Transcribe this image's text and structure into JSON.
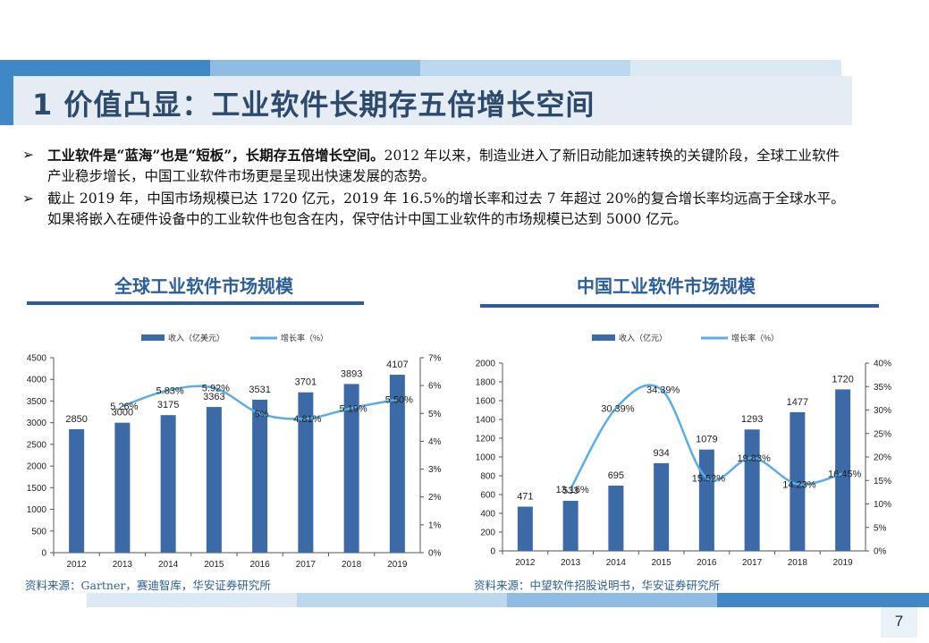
{
  "page": {
    "title": "1 价值凸显：工业软件长期存五倍增长空间",
    "page_number": "7"
  },
  "bullets": [
    {
      "bold": "工业软件是“蓝海”也是“短板”，长期存五倍增长空间。",
      "text": "2012 年以来，制造业进入了新旧动能加速转换的关键阶段，全球工业软件产业稳步增长，中国工业软件市场更是呈现出快速发展的态势。"
    },
    {
      "bold": "",
      "text": "截止 2019 年，中国市场规模已达 1720 亿元，2019 年 16.5%的增长率和过去 7 年超过 20%的复合增长率均远高于全球水平。如果将嵌入在硬件设备中的工业软件也包含在内，保守估计中国工业软件的市场规模已达到 5000 亿元。"
    }
  ],
  "colors": {
    "bar": "#3c6aa6",
    "line": "#5aaee5",
    "title_blue": "#2c5f99",
    "band": [
      "#3f88c5",
      "#8fbce3",
      "#bcd8ef",
      "#dbe9f5"
    ]
  },
  "chart_data": [
    {
      "type": "bar",
      "title": "全球工业软件市场规模",
      "categories": [
        "2012",
        "2013",
        "2014",
        "2015",
        "2016",
        "2017",
        "2018",
        "2019"
      ],
      "series": [
        {
          "name": "收入（亿美元）",
          "values": [
            2850,
            3000,
            3175,
            3363,
            3531,
            3701,
            3893,
            4107
          ],
          "labels": [
            "2850",
            "3000",
            "3175",
            "3363",
            "3531",
            "3701",
            "3893",
            "4107"
          ]
        },
        {
          "name": "增长率（%）",
          "type": "line",
          "axis": "right",
          "values": [
            null,
            5.26,
            5.83,
            5.92,
            5.0,
            4.81,
            5.19,
            5.5
          ],
          "labels": [
            "",
            "5.26%",
            "5.83%",
            "5.92%",
            "5%",
            "4.81%",
            "5.19%",
            "5.50%"
          ]
        }
      ],
      "ylim": [
        0,
        4500
      ],
      "yticks": [
        "0",
        "500",
        "1000",
        "1500",
        "2000",
        "2500",
        "3000",
        "3500",
        "4000",
        "4500"
      ],
      "y2lim": [
        0,
        7
      ],
      "y2ticks": [
        "0%",
        "1%",
        "2%",
        "3%",
        "4%",
        "5%",
        "6%",
        "7%"
      ],
      "legend": "top",
      "grid": false,
      "source": "资料来源：Gartner，赛迪智库，华安证券研究所"
    },
    {
      "type": "bar",
      "title": "中国工业软件市场规模",
      "categories": [
        "2012",
        "2013",
        "2014",
        "2015",
        "2016",
        "2017",
        "2018",
        "2019"
      ],
      "series": [
        {
          "name": "收入（亿元）",
          "values": [
            471,
            533,
            695,
            934,
            1079,
            1293,
            1477,
            1720
          ],
          "labels": [
            "471",
            "533",
            "695",
            "934",
            "1079",
            "1293",
            "1477",
            "1720"
          ]
        },
        {
          "name": "增长率（%）",
          "type": "line",
          "axis": "right",
          "values": [
            null,
            13.16,
            30.39,
            34.39,
            15.52,
            19.83,
            14.23,
            16.45
          ],
          "labels": [
            "",
            "13.16%",
            "30.39%",
            "34.39%",
            "15.52%",
            "19.83%",
            "14.23%",
            "16.45%"
          ]
        }
      ],
      "ylim": [
        0,
        2000
      ],
      "yticks": [
        "0",
        "200",
        "400",
        "600",
        "800",
        "1000",
        "1200",
        "1400",
        "1600",
        "1800",
        "2000"
      ],
      "y2lim": [
        0,
        40
      ],
      "y2ticks": [
        "0%",
        "5%",
        "10%",
        "15%",
        "20%",
        "25%",
        "30%",
        "35%",
        "40%"
      ],
      "legend": "top",
      "grid": false,
      "source": "资料来源：中望软件招股说明书，华安证券研究所"
    }
  ]
}
